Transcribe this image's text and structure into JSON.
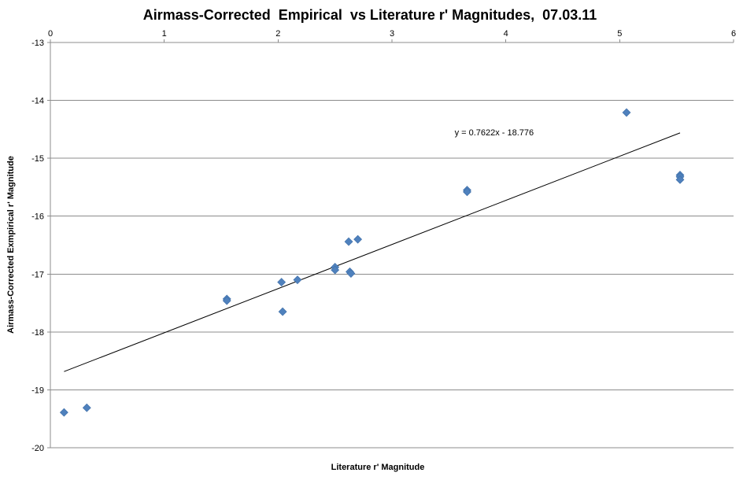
{
  "chart_data": {
    "type": "scatter",
    "title": "Airmass-Corrected  Empirical  vs Literature r' Magnitudes,  07.03.11",
    "xlabel": "Literature r' Magnitude",
    "ylabel": "Airmass-Corrected Exmpirical r' Magnitude",
    "xlim": [
      0,
      6
    ],
    "ylim": [
      -20,
      -13
    ],
    "x_ticks": [
      "0",
      "1",
      "2",
      "3",
      "4",
      "5",
      "6"
    ],
    "y_ticks": [
      "-13",
      "-14",
      "-15",
      "-16",
      "-17",
      "-18",
      "-19",
      "-20"
    ],
    "x_axis_position": "top",
    "grid": "horizontal",
    "marker": "diamond",
    "marker_color": "#4f81bd",
    "line_color": "#000000",
    "grid_color": "#8c8c8c",
    "series": [
      {
        "points": [
          {
            "x": 0.12,
            "y": -19.39
          },
          {
            "x": 0.32,
            "y": -19.31
          },
          {
            "x": 1.55,
            "y": -17.43
          },
          {
            "x": 1.55,
            "y": -17.46
          },
          {
            "x": 2.03,
            "y": -17.14
          },
          {
            "x": 2.04,
            "y": -17.65
          },
          {
            "x": 2.17,
            "y": -17.1
          },
          {
            "x": 2.5,
            "y": -16.88
          },
          {
            "x": 2.5,
            "y": -16.93
          },
          {
            "x": 2.62,
            "y": -16.44
          },
          {
            "x": 2.63,
            "y": -16.96
          },
          {
            "x": 2.64,
            "y": -16.99
          },
          {
            "x": 2.7,
            "y": -16.4
          },
          {
            "x": 3.66,
            "y": -15.55
          },
          {
            "x": 3.66,
            "y": -15.58
          },
          {
            "x": 5.06,
            "y": -14.21
          },
          {
            "x": 5.53,
            "y": -15.29
          },
          {
            "x": 5.53,
            "y": -15.32
          },
          {
            "x": 5.53,
            "y": -15.37
          }
        ]
      }
    ],
    "trendline": {
      "type": "linear",
      "slope": 0.7622,
      "intercept": -18.776,
      "x_range": [
        0.12,
        5.53
      ],
      "equation_label": "y = 0.7622x - 18.776",
      "label_anchor": {
        "x": 3.55,
        "y": -14.55
      }
    }
  }
}
